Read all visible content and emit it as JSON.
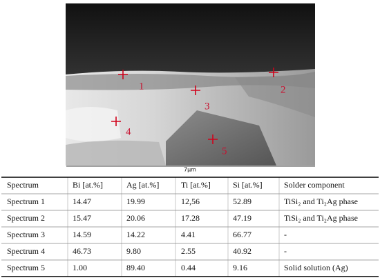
{
  "figure": {
    "markers": [
      "1",
      "2",
      "3",
      "4",
      "5"
    ],
    "scale_bar": "7µm"
  },
  "table": {
    "header": [
      "Spectrum",
      "Bi [at.%]",
      "Ag [at.%]",
      "Ti [at.%]",
      "Si [at.%]",
      "Solder component"
    ],
    "rows": [
      [
        "Spectrum 1",
        "14.47",
        "19.99",
        "12,56",
        "52.89",
        "TiSi₂ and Ti₂Ag phase"
      ],
      [
        "Spectrum 2",
        "15.47",
        "20.06",
        "17.28",
        "47.19",
        "TiSi₂ and Ti₂Ag phase"
      ],
      [
        "Spectrum 3",
        "14.59",
        "14.22",
        "4.41",
        "66.77",
        "-"
      ],
      [
        "Spectrum 4",
        "46.73",
        "9.80",
        "2.55",
        "40.92",
        "-"
      ],
      [
        "Spectrum 5",
        "1.00",
        "89.40",
        "0.44",
        "9.16",
        "Solid solution (Ag)"
      ]
    ]
  }
}
